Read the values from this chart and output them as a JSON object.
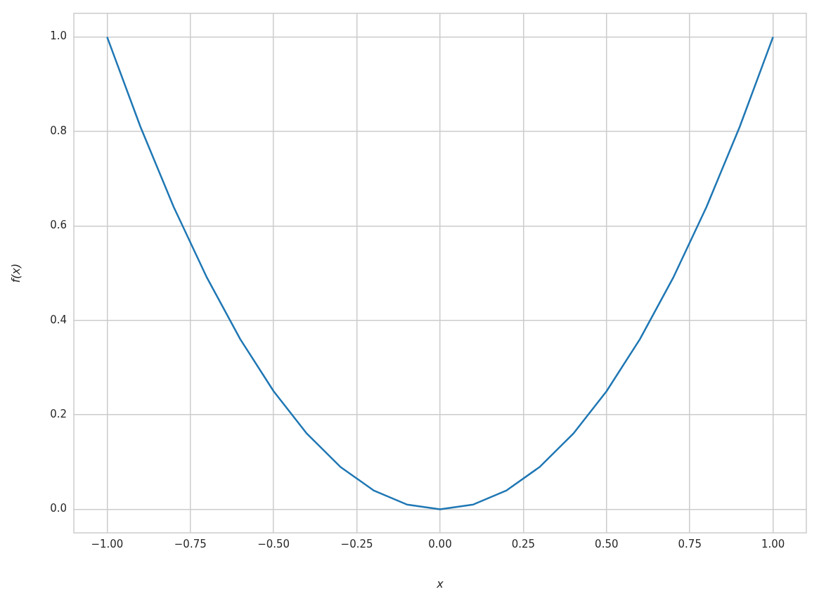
{
  "chart_data": {
    "type": "line",
    "xlabel": "x",
    "ylabel": "f(x)",
    "x": [
      -1.0,
      -0.9,
      -0.8,
      -0.7,
      -0.6,
      -0.5,
      -0.4,
      -0.3,
      -0.2,
      -0.1,
      0.0,
      0.1,
      0.2,
      0.3,
      0.4,
      0.5,
      0.6,
      0.7,
      0.8,
      0.9,
      1.0
    ],
    "series": [
      {
        "color": "#1f77b4",
        "values": [
          1.0,
          0.81,
          0.64,
          0.49,
          0.36,
          0.25,
          0.16,
          0.09,
          0.04,
          0.01,
          0.0,
          0.01,
          0.04,
          0.09,
          0.16,
          0.25,
          0.36,
          0.49,
          0.64,
          0.81,
          1.0
        ]
      }
    ],
    "xlim": [
      -1.1,
      1.1
    ],
    "ylim": [
      -0.05,
      1.05
    ],
    "xticks": [
      {
        "value": -1.0,
        "label": "−1.00"
      },
      {
        "value": -0.75,
        "label": "−0.75"
      },
      {
        "value": -0.5,
        "label": "−0.50"
      },
      {
        "value": -0.25,
        "label": "−0.25"
      },
      {
        "value": 0.0,
        "label": "0.00"
      },
      {
        "value": 0.25,
        "label": "0.25"
      },
      {
        "value": 0.5,
        "label": "0.50"
      },
      {
        "value": 0.75,
        "label": "0.75"
      },
      {
        "value": 1.0,
        "label": "1.00"
      }
    ],
    "yticks": [
      {
        "value": 0.0,
        "label": "0.0"
      },
      {
        "value": 0.2,
        "label": "0.2"
      },
      {
        "value": 0.4,
        "label": "0.4"
      },
      {
        "value": 0.6,
        "label": "0.6"
      },
      {
        "value": 0.8,
        "label": "0.8"
      },
      {
        "value": 1.0,
        "label": "1.0"
      }
    ],
    "grid": true,
    "legend": false
  }
}
